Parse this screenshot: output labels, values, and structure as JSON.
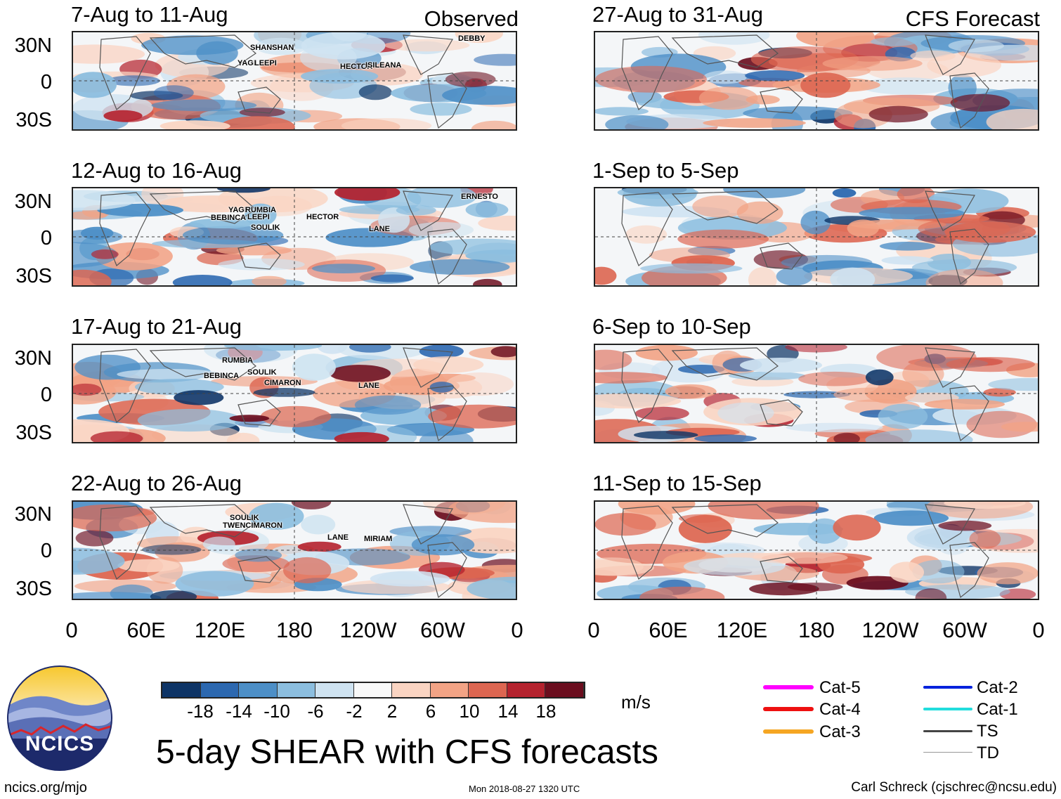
{
  "header": {
    "observed_label": "Observed",
    "forecast_label": "CFS Forecast"
  },
  "lat_labels": [
    "30N",
    "0",
    "30S"
  ],
  "lon_labels": [
    "0",
    "60E",
    "120E",
    "180",
    "120W",
    "60W",
    "0"
  ],
  "observed_panels": [
    {
      "title": "7-Aug to 11-Aug",
      "storms": [
        "SHANSHAN",
        "YAGI",
        "LEEPI",
        "HECTOR",
        "ISILEANA",
        "DEBBY"
      ]
    },
    {
      "title": "12-Aug to 16-Aug",
      "storms": [
        "YAGI",
        "RUMBIA",
        "BEBINCA",
        "LEEPI",
        "SOULIK",
        "HECTOR",
        "LANE",
        "ERNESTO"
      ]
    },
    {
      "title": "17-Aug to 21-Aug",
      "storms": [
        "RUMBIA",
        "BEBINCA",
        "SOULIK",
        "CIMARON",
        "LANE"
      ]
    },
    {
      "title": "22-Aug to 26-Aug",
      "storms": [
        "SOULIK",
        "TWENCIMARON",
        "LANE",
        "MIRIAM"
      ]
    }
  ],
  "forecast_panels": [
    {
      "title": "27-Aug to 31-Aug"
    },
    {
      "title": "1-Sep to 5-Sep"
    },
    {
      "title": "6-Sep to 10-Sep"
    },
    {
      "title": "11-Sep to 15-Sep"
    }
  ],
  "colorbar": {
    "unit": "m/s",
    "colors": [
      "#0d3466",
      "#2c68b0",
      "#4d8fc7",
      "#8cbedf",
      "#cfe3f1",
      "#f9f9f9",
      "#fad4c2",
      "#f2a385",
      "#dd6651",
      "#b5222e",
      "#6b0d1e"
    ],
    "tick_labels": [
      "-18",
      "-14",
      "-10",
      "-6",
      "-2",
      "2",
      "6",
      "10",
      "14",
      "18"
    ]
  },
  "legend": {
    "items": [
      {
        "label": "Cat-5",
        "color": "#ff00ff"
      },
      {
        "label": "Cat-4",
        "color": "#ee1111"
      },
      {
        "label": "Cat-3",
        "color": "#f5a623"
      },
      {
        "label": "Cat-2",
        "color": "#0022dd"
      },
      {
        "label": "Cat-1",
        "color": "#22dddd"
      },
      {
        "label": "TS",
        "color": "#444444"
      },
      {
        "label": "TD",
        "color": "#999999"
      }
    ]
  },
  "main_title": "5-day SHEAR with CFS forecasts",
  "logo": {
    "text": "NCICS"
  },
  "footer": {
    "url": "ncics.org/mjo",
    "timestamp": "Mon 2018-08-27 1320 UTC",
    "author": "Carl Schreck (cjschrec@ncsu.edu)"
  }
}
